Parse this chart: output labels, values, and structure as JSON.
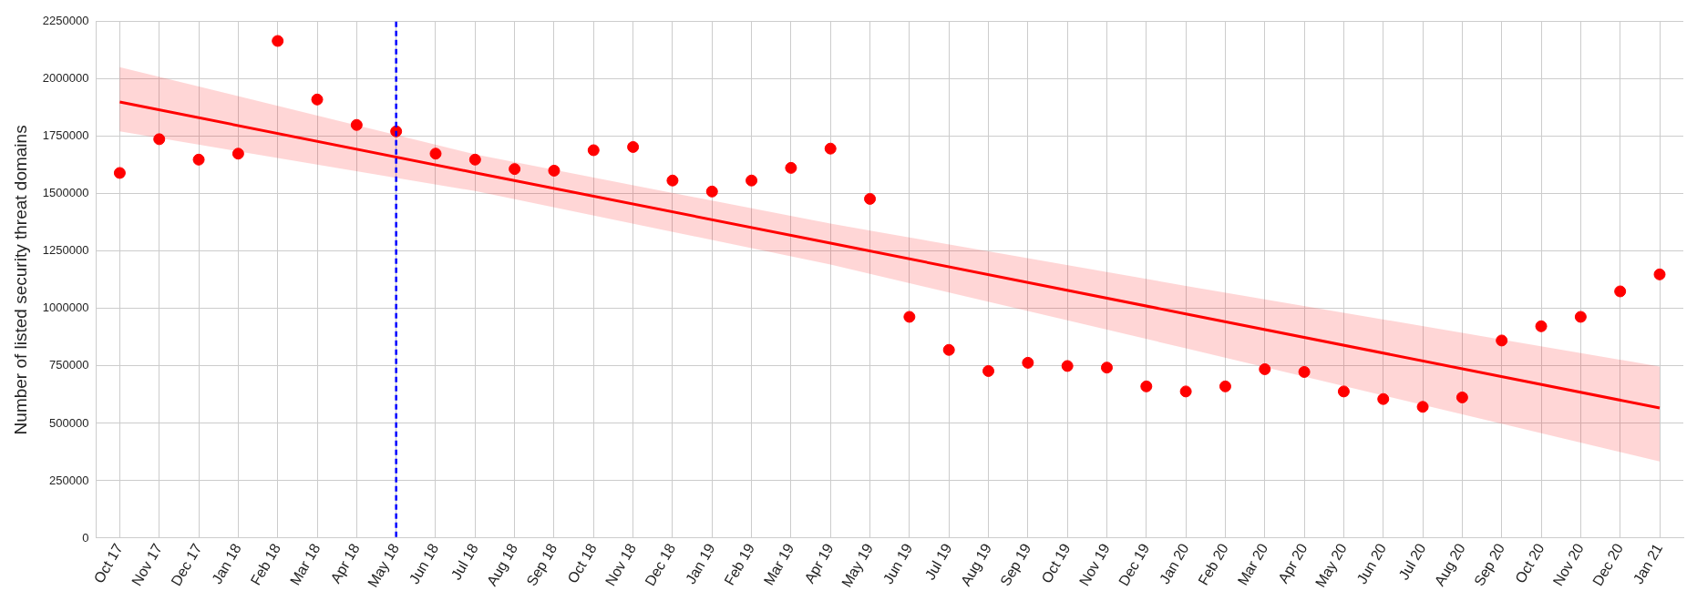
{
  "chart_data": {
    "type": "scatter",
    "ylabel": "Number of listed security threat domains",
    "categories": [
      "Oct 17",
      "Nov 17",
      "Dec 17",
      "Jan 18",
      "Feb 18",
      "Mar 18",
      "Apr 18",
      "May 18",
      "Jun 18",
      "Jul 18",
      "Aug 18",
      "Sep 18",
      "Oct 18",
      "Nov 18",
      "Dec 18",
      "Jan 19",
      "Feb 19",
      "Mar 19",
      "Apr 19",
      "May 19",
      "Jun 19",
      "Jul 19",
      "Aug 19",
      "Sep 19",
      "Oct 19",
      "Nov 19",
      "Dec 19",
      "Jan 20",
      "Feb 20",
      "Mar 20",
      "Apr 20",
      "May 20",
      "Jun 20",
      "Jul 20",
      "Aug 20",
      "Sep 20",
      "Oct 20",
      "Nov 20",
      "Dec 20",
      "Jan 21"
    ],
    "ylim": [
      0,
      2250000
    ],
    "yticks": [
      0,
      250000,
      500000,
      750000,
      1000000,
      1250000,
      1500000,
      1750000,
      2000000,
      2250000
    ],
    "grid": true,
    "legend": false,
    "series": [
      {
        "color": "#ff0000",
        "marker": "circle",
        "values": [
          1591000,
          1738000,
          1649000,
          1675000,
          2166000,
          1911000,
          1800000,
          1772000,
          1675000,
          1649000,
          1608000,
          1601000,
          1690000,
          1704000,
          1558000,
          1510000,
          1558000,
          1613000,
          1697000,
          1478000,
          964000,
          820000,
          728000,
          764000,
          750000,
          743000,
          661000,
          639000,
          661000,
          736000,
          724000,
          639000,
          606000,
          572000,
          613000,
          861000,
          923000,
          964000,
          1075000,
          1149000
        ]
      },
      {
        "type": "line",
        "color": "#ff0000",
        "marker": "none",
        "line_style": "solid",
        "x": [
          "Oct 17",
          "Jul 18",
          "Apr 19",
          "Jan 20",
          "Jan 21"
        ],
        "values": [
          1900000,
          1592000,
          1285000,
          977000,
          567000
        ],
        "lower": [
          1772000,
          1512000,
          1192000,
          827000,
          334000
        ],
        "upper": [
          2052000,
          1672000,
          1370000,
          1099000,
          748000
        ]
      }
    ],
    "ref_lines": [
      {
        "axis": "x",
        "value": "May 18",
        "color": "#0000ff",
        "line_style": "dashed"
      }
    ]
  }
}
